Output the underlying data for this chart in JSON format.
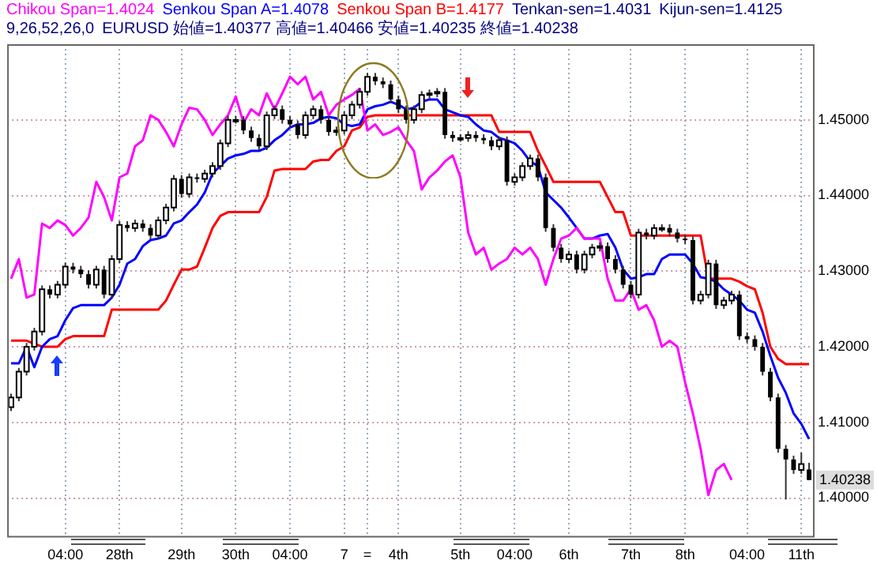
{
  "chart_data": {
    "type": "candlestick",
    "legend": "top",
    "grid": true,
    "marker": "none",
    "categories": [
      null,
      null,
      null,
      null,
      null,
      null,
      null,
      "04:00",
      null,
      null,
      null,
      null,
      null,
      null,
      "28th",
      null,
      null,
      null,
      null,
      null,
      null,
      null,
      "29th",
      null,
      null,
      null,
      null,
      null,
      null,
      "30th",
      null,
      null,
      null,
      null,
      null,
      null,
      "04:00",
      null,
      null,
      null,
      null,
      null,
      null,
      "7",
      null,
      null,
      "=",
      null,
      null,
      null,
      "4th",
      null,
      null,
      null,
      null,
      null,
      null,
      null,
      "5th",
      null,
      null,
      null,
      null,
      null,
      null,
      "04:00",
      null,
      null,
      null,
      null,
      null,
      null,
      "6th",
      null,
      null,
      null,
      null,
      null,
      null,
      null,
      "7th",
      null,
      null,
      null,
      null,
      null,
      null,
      "8th",
      null,
      null,
      null,
      null,
      null,
      null,
      null,
      "04:00",
      null,
      null,
      null,
      null,
      null,
      null,
      "11th",
      null
    ],
    "ohlc": [
      [
        1.412,
        1.4138,
        1.4115,
        1.4133
      ],
      [
        1.4133,
        1.4172,
        1.4128,
        1.4167
      ],
      [
        1.4167,
        1.4205,
        1.4162,
        1.42
      ],
      [
        1.42,
        1.4225,
        1.4195,
        1.422
      ],
      [
        1.422,
        1.4281,
        1.4215,
        1.4276
      ],
      [
        1.4276,
        1.4281,
        1.4264,
        1.4269
      ],
      [
        1.4269,
        1.4287,
        1.4264,
        1.4282
      ],
      [
        1.4282,
        1.4311,
        1.4277,
        1.4306
      ],
      [
        1.4306,
        1.4311,
        1.4297,
        1.4302
      ],
      [
        1.4302,
        1.4307,
        1.4291,
        1.4296
      ],
      [
        1.4296,
        1.4301,
        1.4277,
        1.4282
      ],
      [
        1.4282,
        1.4307,
        1.4277,
        1.4302
      ],
      [
        1.4302,
        1.4307,
        1.4264,
        1.4269
      ],
      [
        1.4269,
        1.4321,
        1.4264,
        1.4316
      ],
      [
        1.4316,
        1.4366,
        1.4311,
        1.4361
      ],
      [
        1.4361,
        1.4366,
        1.4352,
        1.4357
      ],
      [
        1.4357,
        1.4368,
        1.4352,
        1.4363
      ],
      [
        1.4363,
        1.4368,
        1.4352,
        1.4357
      ],
      [
        1.4357,
        1.4362,
        1.4342,
        1.4347
      ],
      [
        1.4347,
        1.4372,
        1.4342,
        1.4367
      ],
      [
        1.4367,
        1.4389,
        1.4362,
        1.4384
      ],
      [
        1.4384,
        1.4427,
        1.4379,
        1.4422
      ],
      [
        1.4422,
        1.4427,
        1.4397,
        1.4402
      ],
      [
        1.4402,
        1.4429,
        1.4397,
        1.4424
      ],
      [
        1.4424,
        1.4429,
        1.4417,
        1.4422
      ],
      [
        1.4422,
        1.4434,
        1.4417,
        1.4429
      ],
      [
        1.4429,
        1.4444,
        1.4424,
        1.4439
      ],
      [
        1.4439,
        1.4474,
        1.4434,
        1.4469
      ],
      [
        1.4469,
        1.4505,
        1.4464,
        1.45
      ],
      [
        1.45,
        1.4505,
        1.4495,
        1.45
      ],
      [
        1.45,
        1.4505,
        1.4481,
        1.4486
      ],
      [
        1.4486,
        1.4491,
        1.4471,
        1.4476
      ],
      [
        1.4476,
        1.4481,
        1.446,
        1.4465
      ],
      [
        1.4465,
        1.4511,
        1.446,
        1.4506
      ],
      [
        1.4506,
        1.4519,
        1.4501,
        1.4514
      ],
      [
        1.4514,
        1.4519,
        1.4495,
        1.45
      ],
      [
        1.45,
        1.4505,
        1.4489,
        1.4494
      ],
      [
        1.4494,
        1.4499,
        1.4475,
        1.448
      ],
      [
        1.448,
        1.4511,
        1.4475,
        1.4506
      ],
      [
        1.4506,
        1.4519,
        1.4501,
        1.4514
      ],
      [
        1.4514,
        1.4519,
        1.4495,
        1.45
      ],
      [
        1.45,
        1.4505,
        1.4479,
        1.4484
      ],
      [
        1.4484,
        1.4491,
        1.4479,
        1.4486
      ],
      [
        1.4486,
        1.4511,
        1.4481,
        1.4506
      ],
      [
        1.4506,
        1.4525,
        1.4501,
        1.452
      ],
      [
        1.452,
        1.4542,
        1.4515,
        1.4537
      ],
      [
        1.4537,
        1.4562,
        1.4532,
        1.4557
      ],
      [
        1.4557,
        1.4562,
        1.4546,
        1.4551
      ],
      [
        1.4551,
        1.4556,
        1.4542,
        1.4547
      ],
      [
        1.4547,
        1.4552,
        1.4522,
        1.4527
      ],
      [
        1.4527,
        1.4532,
        1.4509,
        1.4514
      ],
      [
        1.4514,
        1.4519,
        1.4495,
        1.45
      ],
      [
        1.45,
        1.4519,
        1.4495,
        1.4514
      ],
      [
        1.4514,
        1.4538,
        1.4509,
        1.4533
      ],
      [
        1.4533,
        1.454,
        1.4528,
        1.4535
      ],
      [
        1.4535,
        1.4542,
        1.453,
        1.4537
      ],
      [
        1.4537,
        1.4542,
        1.4475,
        1.448
      ],
      [
        1.448,
        1.4485,
        1.4471,
        1.4476
      ],
      [
        1.4476,
        1.4481,
        1.4471,
        1.4476
      ],
      [
        1.4476,
        1.4485,
        1.4471,
        1.448
      ],
      [
        1.448,
        1.4485,
        1.4471,
        1.4476
      ],
      [
        1.4476,
        1.4481,
        1.4468,
        1.4473
      ],
      [
        1.4473,
        1.4478,
        1.446,
        1.4465
      ],
      [
        1.4465,
        1.4478,
        1.446,
        1.4473
      ],
      [
        1.4473,
        1.4478,
        1.4413,
        1.4418
      ],
      [
        1.4418,
        1.4429,
        1.4413,
        1.4424
      ],
      [
        1.4424,
        1.4444,
        1.4419,
        1.4439
      ],
      [
        1.4439,
        1.4454,
        1.4434,
        1.4449
      ],
      [
        1.4449,
        1.4454,
        1.4419,
        1.4424
      ],
      [
        1.4424,
        1.4429,
        1.4352,
        1.4357
      ],
      [
        1.4357,
        1.4362,
        1.4326,
        1.4331
      ],
      [
        1.4331,
        1.4336,
        1.4311,
        1.4316
      ],
      [
        1.4316,
        1.4327,
        1.4311,
        1.4322
      ],
      [
        1.4322,
        1.4327,
        1.4297,
        1.4302
      ],
      [
        1.4302,
        1.4327,
        1.4297,
        1.4322
      ],
      [
        1.4322,
        1.4336,
        1.4317,
        1.4331
      ],
      [
        1.4331,
        1.4338,
        1.4326,
        1.4333
      ],
      [
        1.4333,
        1.4338,
        1.4311,
        1.4316
      ],
      [
        1.4316,
        1.4321,
        1.4297,
        1.4302
      ],
      [
        1.4302,
        1.4307,
        1.4277,
        1.4282
      ],
      [
        1.4282,
        1.4287,
        1.4264,
        1.4269
      ],
      [
        1.4269,
        1.4356,
        1.4264,
        1.4351
      ],
      [
        1.4351,
        1.4356,
        1.4342,
        1.4347
      ],
      [
        1.4347,
        1.4362,
        1.4342,
        1.4357
      ],
      [
        1.4357,
        1.4362,
        1.4352,
        1.4357
      ],
      [
        1.4357,
        1.4362,
        1.4346,
        1.4351
      ],
      [
        1.4351,
        1.4356,
        1.4338,
        1.4343
      ],
      [
        1.4343,
        1.4348,
        1.4336,
        1.4341
      ],
      [
        1.4341,
        1.4346,
        1.4256,
        1.4261
      ],
      [
        1.4261,
        1.4274,
        1.4256,
        1.4269
      ],
      [
        1.4269,
        1.4315,
        1.4264,
        1.431
      ],
      [
        1.431,
        1.4315,
        1.425,
        1.4255
      ],
      [
        1.4255,
        1.4266,
        1.425,
        1.4261
      ],
      [
        1.4261,
        1.4274,
        1.4256,
        1.4269
      ],
      [
        1.4269,
        1.4274,
        1.4209,
        1.4214
      ],
      [
        1.4214,
        1.4219,
        1.4205,
        1.421
      ],
      [
        1.421,
        1.4215,
        1.4195,
        1.42
      ],
      [
        1.42,
        1.4205,
        1.4162,
        1.4167
      ],
      [
        1.4167,
        1.4172,
        1.4128,
        1.4133
      ],
      [
        1.4133,
        1.4138,
        1.406,
        1.4065
      ],
      [
        1.4065,
        1.407,
        1.3998,
        1.4051
      ],
      [
        1.4051,
        1.4056,
        1.4032,
        1.4037
      ],
      [
        1.4037,
        1.406,
        1.4032,
        1.4045
      ],
      [
        1.40377,
        1.40466,
        1.40235,
        1.40238
      ]
    ],
    "series": [
      {
        "name": "Chikou Span=1.4024",
        "type": "line",
        "color": "#ff00ff",
        "values": [
          1.429,
          1.4316,
          1.4265,
          1.4269,
          1.4363,
          1.4357,
          1.4367,
          1.4361,
          1.4347,
          1.4357,
          1.4371,
          1.4418,
          1.4398,
          1.4367,
          1.4424,
          1.4429,
          1.4465,
          1.4473,
          1.4506,
          1.45,
          1.4484,
          1.4465,
          1.4494,
          1.4516,
          1.4514,
          1.45,
          1.448,
          1.4494,
          1.4506,
          1.4531,
          1.4496,
          1.4514,
          1.4506,
          1.4535,
          1.4514,
          1.4535,
          1.4557,
          1.4547,
          1.4557,
          1.4527,
          1.4537,
          1.4506,
          1.452,
          1.4527,
          1.4533,
          1.4541,
          1.4486,
          1.4494,
          1.448,
          1.4484,
          1.449,
          1.4473,
          1.4459,
          1.4408,
          1.4424,
          1.4433,
          1.4445,
          1.4453,
          1.4424,
          1.4351,
          1.4322,
          1.4331,
          1.4302,
          1.431,
          1.4316,
          1.4331,
          1.4322,
          1.4331,
          1.4316,
          1.4282,
          1.4316,
          1.4343,
          1.4347,
          1.4357,
          1.4343,
          1.4343,
          1.4343,
          1.429,
          1.4261,
          1.4261,
          1.4276,
          1.4249,
          1.4255,
          1.4235,
          1.42,
          1.4208,
          1.42,
          1.4153,
          1.4112,
          1.4065,
          1.4004,
          1.4037,
          1.4045,
          1.4024,
          null,
          null,
          null,
          null,
          null,
          null,
          null,
          null,
          null,
          null
        ]
      },
      {
        "name": "Senkou Span A=1.4078",
        "type": "line",
        "color": "#0000ff",
        "values": [
          1.4178,
          1.4178,
          1.42,
          1.4173,
          1.42,
          1.421,
          1.4214,
          1.4235,
          1.4251,
          1.4255,
          1.4255,
          1.4255,
          1.4255,
          1.4265,
          1.4282,
          1.431,
          1.4316,
          1.4333,
          1.4341,
          1.4343,
          1.4347,
          1.4363,
          1.4367,
          1.4378,
          1.4388,
          1.4404,
          1.4429,
          1.4439,
          1.4449,
          1.4453,
          1.4455,
          1.4459,
          1.4459,
          1.4463,
          1.4473,
          1.448,
          1.449,
          1.4494,
          1.4494,
          1.4496,
          1.4502,
          1.4504,
          1.4502,
          1.4494,
          1.4492,
          1.4494,
          1.4514,
          1.4518,
          1.452,
          1.4524,
          1.452,
          1.4514,
          1.4516,
          1.4524,
          1.4527,
          1.4527,
          1.4514,
          1.451,
          1.4506,
          1.4504,
          1.4494,
          1.4486,
          1.4484,
          1.4476,
          1.4473,
          1.4469,
          1.4459,
          1.4445,
          1.4439,
          1.4404,
          1.4394,
          1.4384,
          1.4371,
          1.4357,
          1.4343,
          1.4343,
          1.4347,
          1.4349,
          1.4331,
          1.4302,
          1.429,
          1.4292,
          1.4296,
          1.4296,
          1.4316,
          1.4322,
          1.4322,
          1.4322,
          1.431,
          1.4292,
          1.429,
          1.4286,
          1.4276,
          1.4269,
          1.4261,
          1.4249,
          1.4245,
          1.422,
          1.4188,
          1.4159,
          1.4139,
          1.4112,
          1.4098,
          1.4078
        ]
      },
      {
        "name": "Senkou Span B=1.4177",
        "type": "line",
        "color": "#ff0000",
        "values": [
          1.4208,
          1.4208,
          1.4208,
          1.4204,
          1.42,
          1.42,
          1.42,
          1.421,
          1.4214,
          1.4214,
          1.4214,
          1.4214,
          1.4214,
          1.4249,
          1.4249,
          1.4249,
          1.4249,
          1.4249,
          1.4249,
          1.4249,
          1.4261,
          1.4282,
          1.4302,
          1.4302,
          1.4306,
          1.4331,
          1.4357,
          1.4373,
          1.4378,
          1.4378,
          1.4378,
          1.4378,
          1.4378,
          1.4398,
          1.4433,
          1.4435,
          1.4435,
          1.4435,
          1.4435,
          1.4445,
          1.4447,
          1.4447,
          1.4459,
          1.4465,
          1.4486,
          1.449,
          1.4504,
          1.4506,
          1.4506,
          1.4506,
          1.4506,
          1.4506,
          1.4506,
          1.4506,
          1.4506,
          1.4506,
          1.4506,
          1.4506,
          1.4506,
          1.4506,
          1.4506,
          1.4506,
          1.4506,
          1.4484,
          1.4484,
          1.4484,
          1.4484,
          1.4484,
          1.4459,
          1.4439,
          1.4418,
          1.4418,
          1.4418,
          1.4418,
          1.4418,
          1.4418,
          1.4418,
          1.4398,
          1.4378,
          1.4378,
          1.4347,
          1.4347,
          1.4347,
          1.4347,
          1.4347,
          1.4347,
          1.4347,
          1.4347,
          1.4347,
          1.4347,
          1.429,
          1.429,
          1.429,
          1.429,
          1.4286,
          1.428,
          1.4276,
          1.4245,
          1.42,
          1.4184,
          1.4177,
          1.4177,
          1.4177,
          1.4177
        ]
      }
    ],
    "ylim": [
      1.395,
      1.46
    ],
    "yticks": [
      {
        "value": 1.4,
        "label": "1.40000"
      },
      {
        "value": 1.41,
        "label": "1.41000"
      },
      {
        "value": 1.42,
        "label": "1.42000"
      },
      {
        "value": 1.43,
        "label": "1.43000"
      },
      {
        "value": 1.44,
        "label": "1.44000"
      },
      {
        "value": 1.45,
        "label": "1.45000"
      }
    ],
    "annotations": [
      "Tenkan-sen=1.4031",
      "Kijun-sen=1.4125",
      "9,26,52,26,0",
      "EURUSD 始値=1.40377 高値=1.40466 安値=1.40235 終値=1.40238",
      {
        "text": "1.40238",
        "y": 1.40238
      }
    ]
  }
}
